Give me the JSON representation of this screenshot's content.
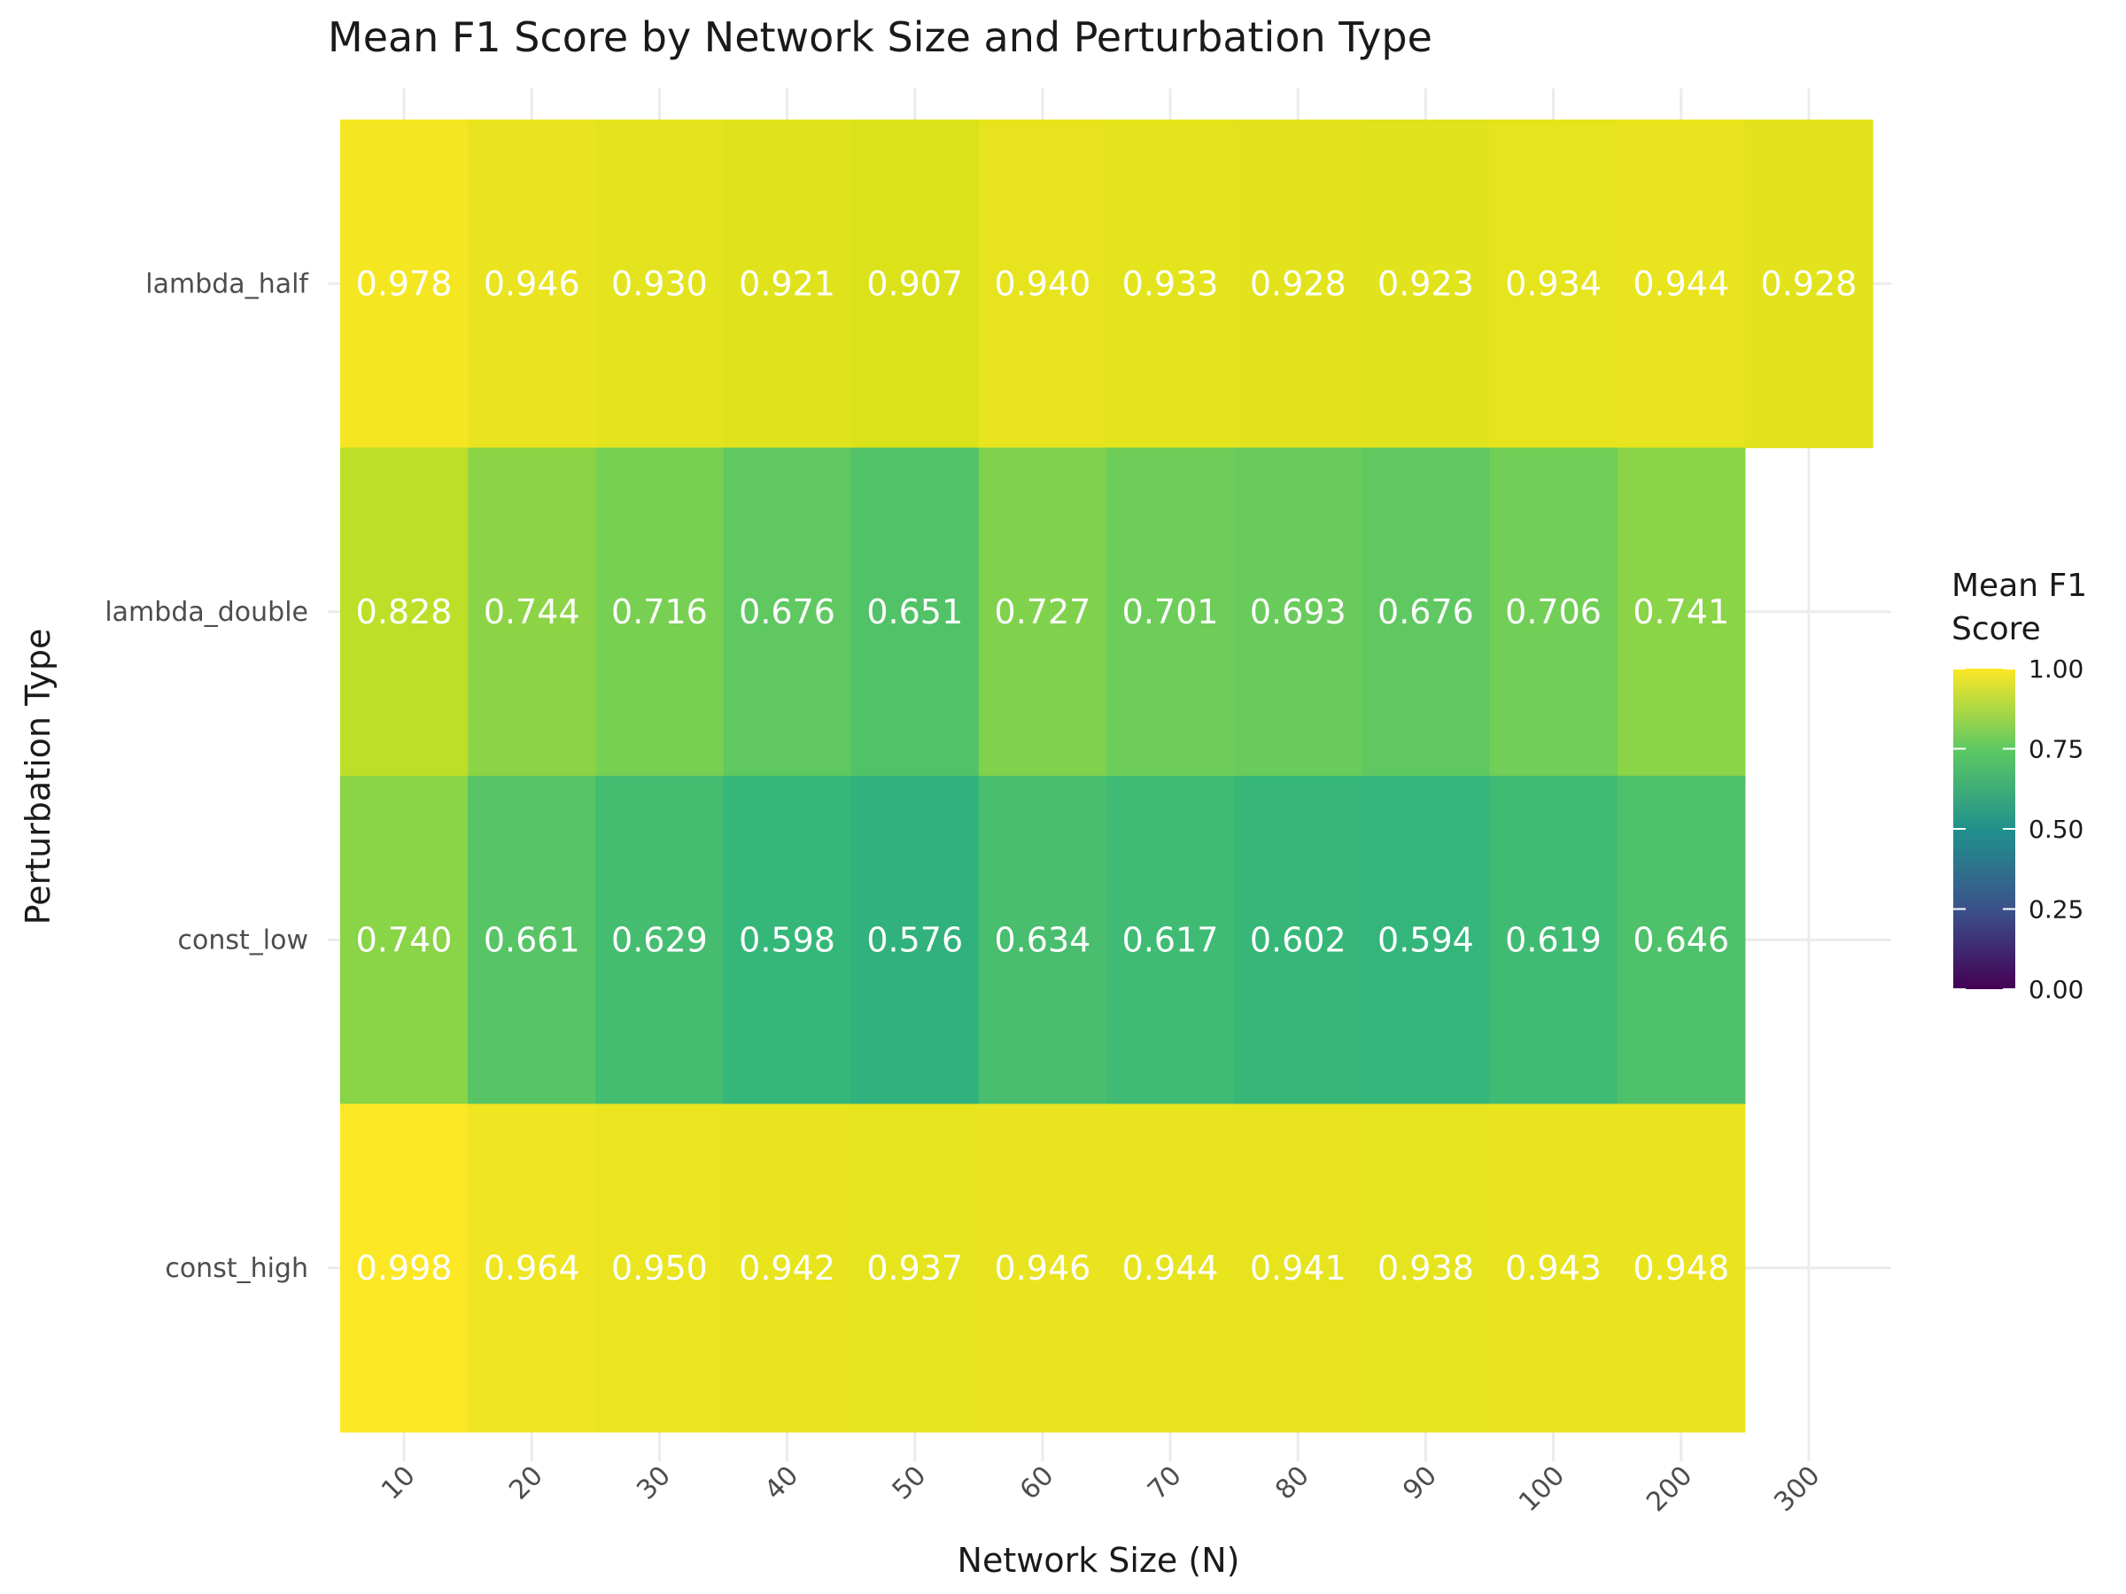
{
  "chart_data": {
    "type": "heatmap",
    "title": "Mean F1 Score by Network Size and Perturbation Type",
    "xlabel": "Network Size (N)",
    "ylabel": "Perturbation Type",
    "x_categories": [
      "10",
      "20",
      "30",
      "40",
      "50",
      "60",
      "70",
      "80",
      "90",
      "100",
      "200",
      "300"
    ],
    "y_categories": [
      "lambda_half",
      "lambda_double",
      "const_low",
      "const_high"
    ],
    "values": [
      [
        0.978,
        0.946,
        0.93,
        0.921,
        0.907,
        0.94,
        0.933,
        0.928,
        0.923,
        0.934,
        0.944,
        0.928
      ],
      [
        0.828,
        0.744,
        0.716,
        0.676,
        0.651,
        0.727,
        0.701,
        0.693,
        0.676,
        0.706,
        0.741,
        null
      ],
      [
        0.74,
        0.661,
        0.629,
        0.598,
        0.576,
        0.634,
        0.617,
        0.602,
        0.594,
        0.619,
        0.646,
        null
      ],
      [
        0.998,
        0.964,
        0.95,
        0.942,
        0.937,
        0.946,
        0.944,
        0.941,
        0.938,
        0.943,
        0.948,
        null
      ]
    ],
    "legend": {
      "title_lines": [
        "Mean F1",
        "Score"
      ],
      "ticks": [
        "1.00",
        "0.75",
        "0.50",
        "0.25",
        "0.00"
      ],
      "range": [
        0,
        1
      ],
      "colormap": "viridis",
      "placement": "right"
    },
    "grid": true
  }
}
